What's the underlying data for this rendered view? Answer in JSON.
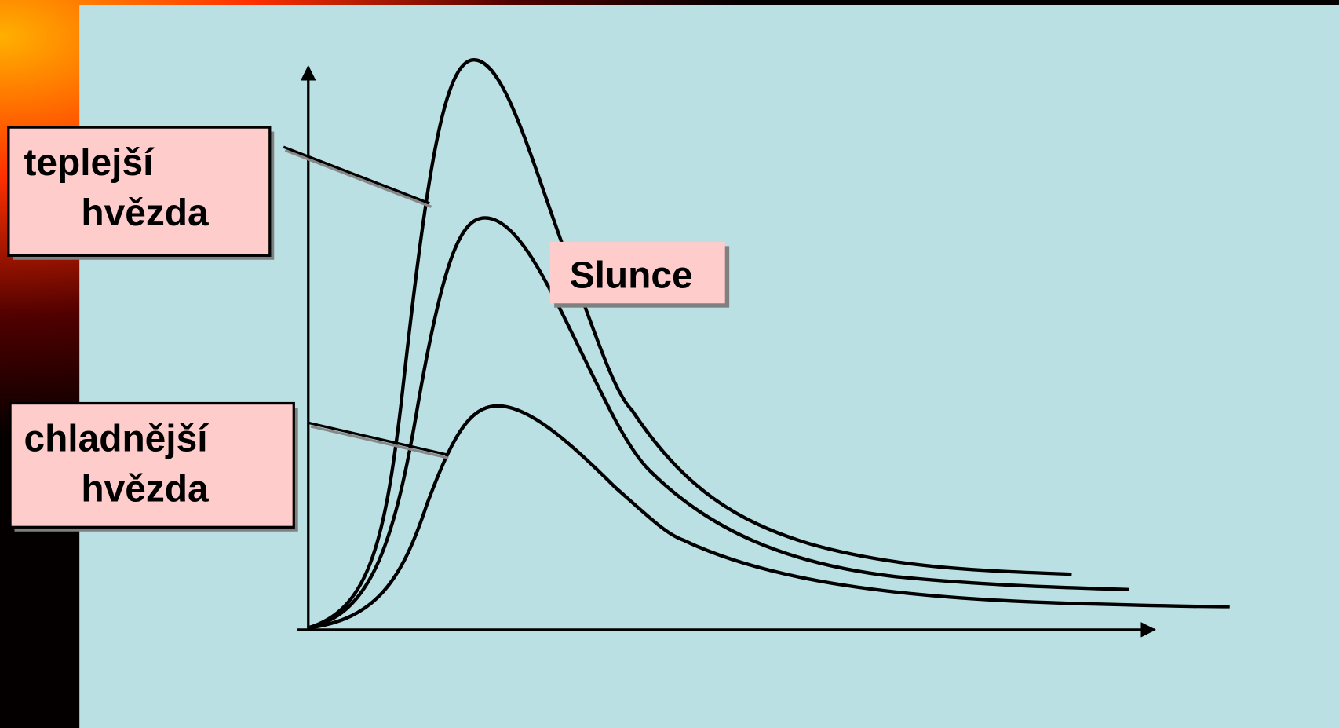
{
  "labels": [
    {
      "lines": [
        "teplejší",
        "hvězda"
      ]
    },
    {
      "lines": [
        "Slunce"
      ]
    },
    {
      "lines": [
        "chladnější",
        "hvězda"
      ]
    }
  ]
}
